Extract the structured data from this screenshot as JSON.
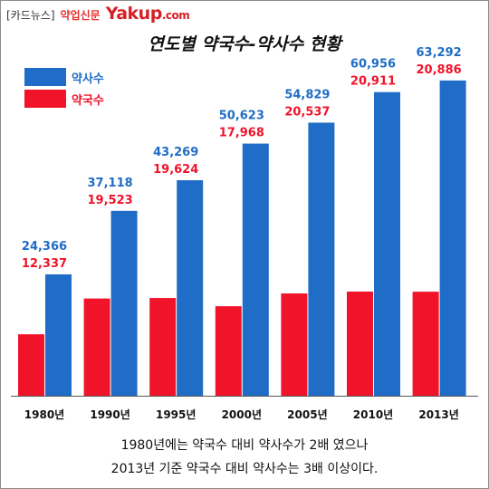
{
  "brand": {
    "tag": "[카드뉴스]",
    "site": "약업신문",
    "logo": "Yakup",
    "logo_suffix": ".com"
  },
  "colors": {
    "pharmacist": "#1f6dc6",
    "pharmacy": "#f0132a",
    "baseline": "#555555"
  },
  "chart_data": {
    "type": "bar",
    "title": "연도별 약국수-약사수 현황",
    "xlabel": "",
    "ylabel": "",
    "ylim": [
      0,
      70000
    ],
    "grid": false,
    "legend_position": "top-left",
    "categories": [
      "1980년",
      "1990년",
      "1995년",
      "2000년",
      "2005년",
      "2010년",
      "2013년"
    ],
    "series": [
      {
        "name": "약국수",
        "color": "#f0132a",
        "values": [
          12337,
          19523,
          19624,
          17968,
          20537,
          20911,
          20886
        ],
        "labels": [
          "12,337",
          "19,523",
          "19,624",
          "17,968",
          "20,537",
          "20,911",
          "20,886"
        ]
      },
      {
        "name": "약사수",
        "color": "#1f6dc6",
        "values": [
          24366,
          37118,
          43269,
          50623,
          54829,
          60956,
          63292
        ],
        "labels": [
          "24,366",
          "37,118",
          "43,269",
          "50,623",
          "54,829",
          "60,956",
          "63,292"
        ]
      }
    ]
  },
  "caption": {
    "line1": "1980년에는 약국수 대비 약사수가 2배 였으나",
    "line2": "2013년 기준 약국수 대비 약사수는 3배 이상이다."
  }
}
